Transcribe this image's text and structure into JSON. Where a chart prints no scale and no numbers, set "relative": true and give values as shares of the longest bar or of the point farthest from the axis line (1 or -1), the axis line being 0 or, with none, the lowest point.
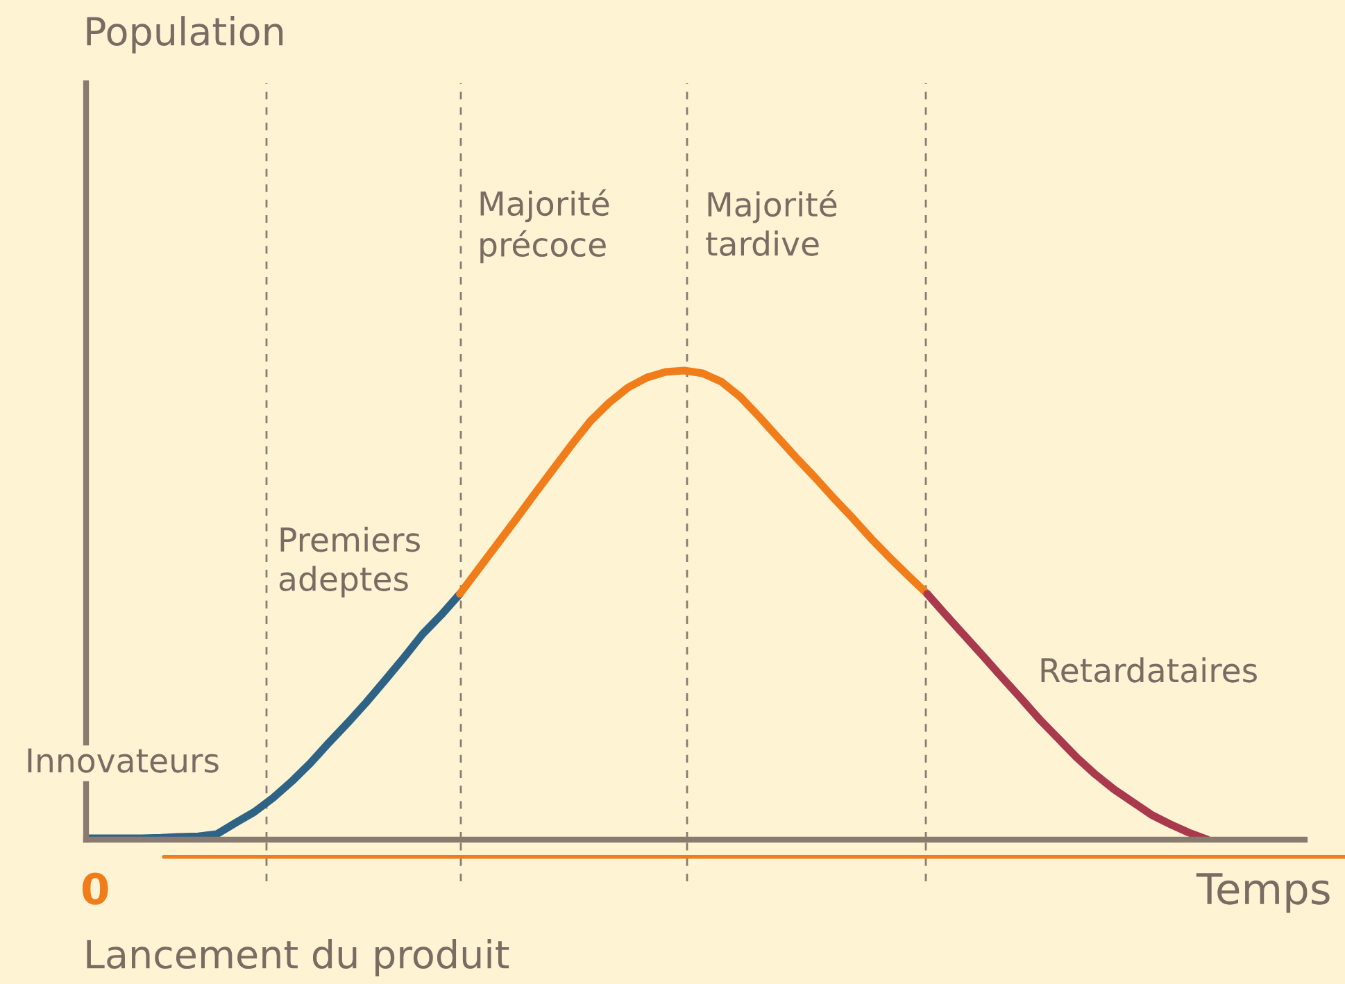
{
  "chart_data": {
    "type": "line",
    "relative": true,
    "grid": "x",
    "xlabel": "Temps",
    "marker": "none",
    "line_style": "solid",
    "categories": [
      null,
      null,
      null,
      null,
      null,
      null,
      null,
      null,
      null,
      null,
      null,
      null,
      null,
      null,
      null,
      null,
      null,
      null,
      null,
      null,
      null,
      null,
      null,
      null,
      null,
      null,
      null,
      null,
      null,
      null,
      null,
      null,
      null,
      null,
      null,
      null,
      null,
      null,
      null,
      null,
      null,
      null,
      null,
      null,
      null,
      null,
      null,
      null,
      null,
      null,
      null,
      null,
      null,
      null,
      null,
      null,
      null,
      null,
      null,
      null,
      null
    ],
    "series": [
      {
        "color": "#2e6386",
        "values": [
          0.003,
          0.003,
          0.003,
          0.003,
          0.004,
          0.006,
          0.007,
          0.012,
          0.036,
          0.059,
          0.089,
          0.124,
          0.163,
          0.207,
          0.249,
          0.293,
          0.34,
          0.388,
          0.438,
          0.479,
          0.524,
          null,
          null,
          null,
          null,
          null,
          null,
          null,
          null,
          null,
          null,
          null,
          null,
          null,
          null,
          null,
          null,
          null,
          null,
          null,
          null,
          null,
          null,
          null,
          null,
          null,
          null,
          null,
          null,
          null,
          null,
          null,
          null,
          null,
          null,
          null,
          null,
          null,
          null,
          null,
          null
        ]
      },
      {
        "color": "#f07d1a",
        "values": [
          null,
          null,
          null,
          null,
          null,
          null,
          null,
          null,
          null,
          null,
          null,
          null,
          null,
          null,
          null,
          null,
          null,
          null,
          null,
          null,
          0.524,
          0.577,
          0.63,
          0.683,
          0.737,
          0.79,
          0.843,
          0.893,
          0.932,
          0.964,
          0.985,
          0.997,
          1,
          0.994,
          0.976,
          0.944,
          0.902,
          0.858,
          0.814,
          0.772,
          0.728,
          0.686,
          0.642,
          0.601,
          0.562,
          0.524,
          null,
          null,
          null,
          null,
          null,
          null,
          null,
          null,
          null,
          null,
          null,
          null,
          null,
          null,
          null
        ]
      },
      {
        "color": "#a93a4d",
        "values": [
          null,
          null,
          null,
          null,
          null,
          null,
          null,
          null,
          null,
          null,
          null,
          null,
          null,
          null,
          null,
          null,
          null,
          null,
          null,
          null,
          null,
          null,
          null,
          null,
          null,
          null,
          null,
          null,
          null,
          null,
          null,
          null,
          null,
          null,
          null,
          null,
          null,
          null,
          null,
          null,
          null,
          null,
          null,
          null,
          null,
          0.524,
          0.479,
          0.435,
          0.391,
          0.346,
          0.302,
          0.257,
          0.216,
          0.175,
          0.139,
          0.107,
          0.08,
          0.053,
          0.033,
          0.015,
          0
        ]
      }
    ],
    "annotations": [
      "Population",
      "Innovateurs",
      "Premiers\nadeptes",
      "Majorité\nprécoce",
      "Majorité\ntardive",
      "Retardataires",
      "0",
      "Lancement du produit"
    ]
  }
}
